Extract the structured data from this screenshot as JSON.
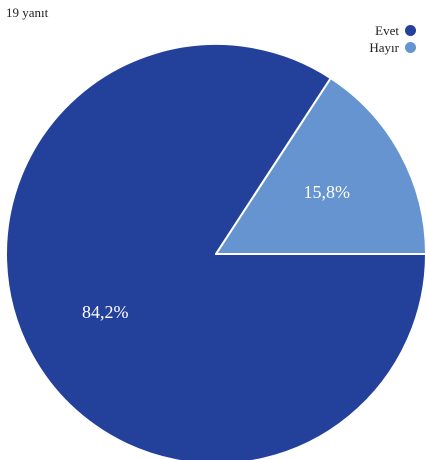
{
  "response_count": "19 yanıt",
  "colors": {
    "evet": "#23409a",
    "hayir": "#6594d0",
    "separator": "#ffffff"
  },
  "chart_data": {
    "type": "pie",
    "categories": [
      "Evet",
      "Hayır"
    ],
    "values": [
      84.2,
      15.8
    ],
    "data_labels": [
      "84,2%",
      "15,8%"
    ],
    "legend_position": "top-right",
    "start_angle_deg": 90,
    "direction": "counterclockwise"
  }
}
